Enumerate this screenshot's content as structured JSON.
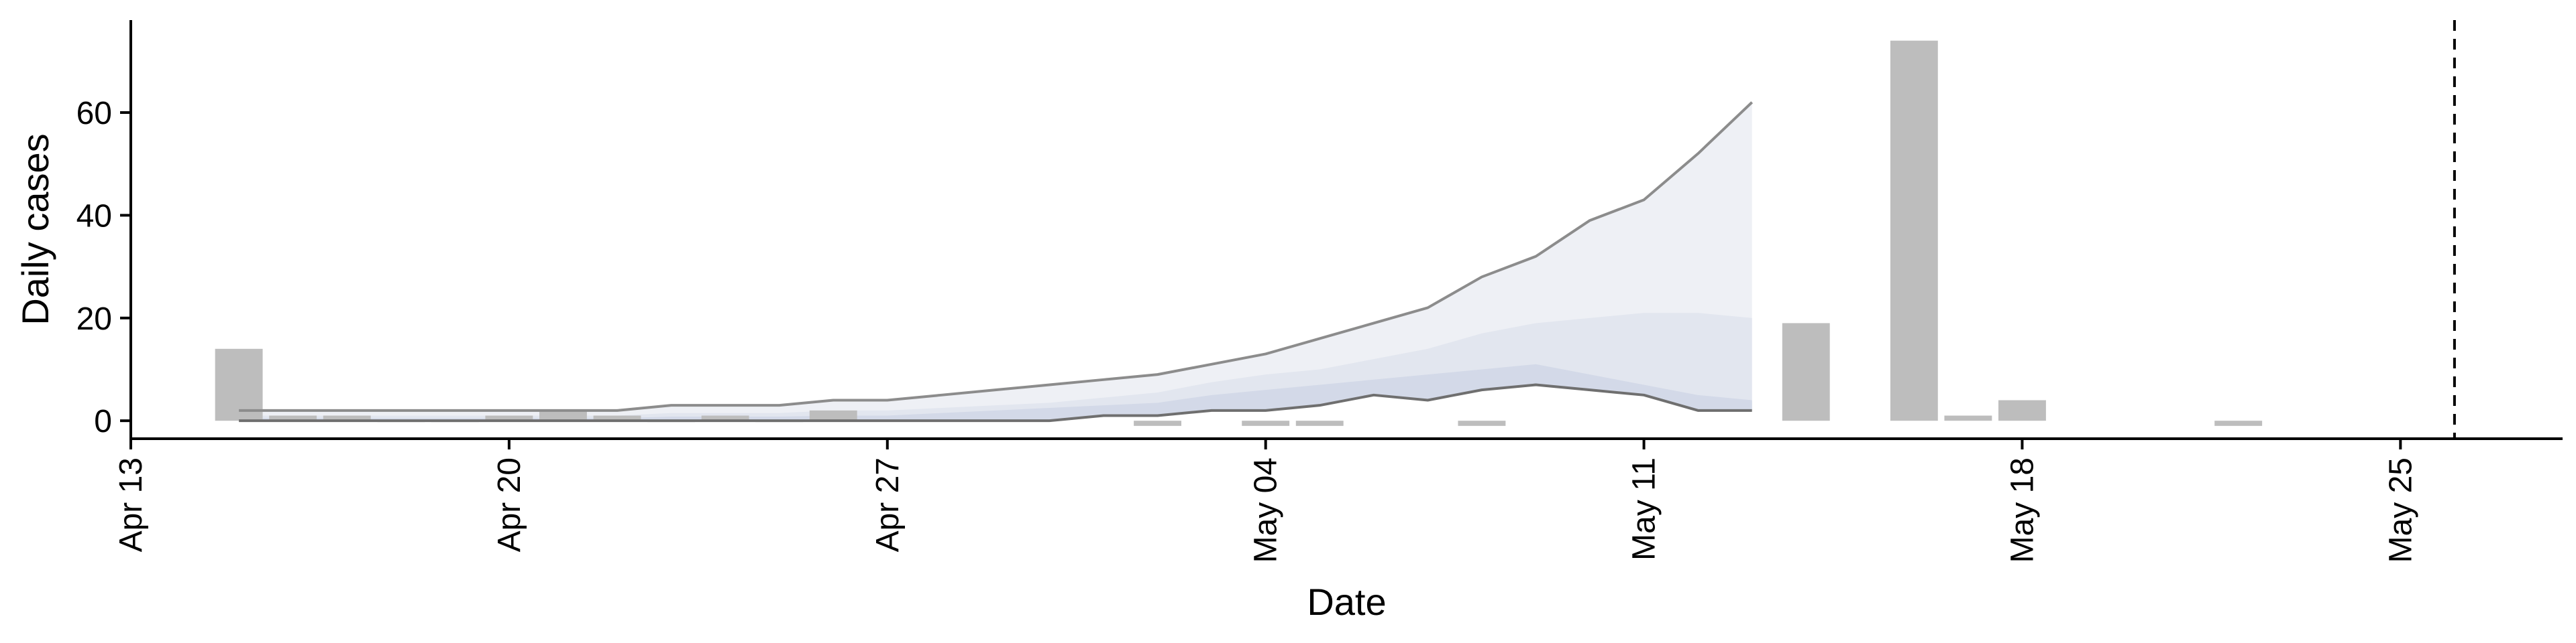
{
  "chart_data": {
    "type": "bar",
    "xlabel": "Date",
    "ylabel": "Daily cases",
    "x_tick_labels": [
      "Apr 13",
      "Apr 20",
      "Apr 27",
      "May 04",
      "May 11",
      "May 18",
      "May 25"
    ],
    "y_tick_labels": [
      "0",
      "20",
      "40",
      "60"
    ],
    "y_ticks": [
      0,
      20,
      40,
      60
    ],
    "ylim": [
      -3.5,
      78
    ],
    "xlim": [
      "2020-04-13",
      "2020-05-28"
    ],
    "x_ticks": [
      "2020-04-13",
      "2020-04-20",
      "2020-04-27",
      "2020-05-04",
      "2020-05-11",
      "2020-05-18",
      "2020-05-25"
    ],
    "cutoff_date": "2020-05-26",
    "colors": {
      "bars": "#bdbdbd",
      "outer_band": "#eef0f5",
      "middle_band": "#e2e6ef",
      "inner_band": "#d3d9e8",
      "upper_line": "#8c8c8c",
      "lower_line": "#6f6f6f",
      "axis": "#000000"
    },
    "observed_cases": [
      {
        "date": "2020-04-15",
        "value": 14
      },
      {
        "date": "2020-04-16",
        "value": 1
      },
      {
        "date": "2020-04-17",
        "value": 1
      },
      {
        "date": "2020-04-18",
        "value": 0
      },
      {
        "date": "2020-04-19",
        "value": 0
      },
      {
        "date": "2020-04-20",
        "value": 1
      },
      {
        "date": "2020-04-21",
        "value": 2
      },
      {
        "date": "2020-04-22",
        "value": 1
      },
      {
        "date": "2020-04-23",
        "value": 0
      },
      {
        "date": "2020-04-24",
        "value": 1
      },
      {
        "date": "2020-04-25",
        "value": 0
      },
      {
        "date": "2020-04-26",
        "value": 2
      },
      {
        "date": "2020-05-02",
        "value": -1
      },
      {
        "date": "2020-05-04",
        "value": -1
      },
      {
        "date": "2020-05-05",
        "value": -1
      },
      {
        "date": "2020-05-08",
        "value": -1
      },
      {
        "date": "2020-05-14",
        "value": 19
      },
      {
        "date": "2020-05-16",
        "value": 74
      },
      {
        "date": "2020-05-17",
        "value": 1
      },
      {
        "date": "2020-05-18",
        "value": 4
      },
      {
        "date": "2020-05-22",
        "value": -1
      }
    ],
    "forecast": {
      "dates": [
        "2020-04-15",
        "2020-04-16",
        "2020-04-17",
        "2020-04-18",
        "2020-04-19",
        "2020-04-20",
        "2020-04-21",
        "2020-04-22",
        "2020-04-23",
        "2020-04-24",
        "2020-04-25",
        "2020-04-26",
        "2020-04-27",
        "2020-04-28",
        "2020-04-29",
        "2020-04-30",
        "2020-05-01",
        "2020-05-02",
        "2020-05-03",
        "2020-05-04",
        "2020-05-05",
        "2020-05-06",
        "2020-05-07",
        "2020-05-08",
        "2020-05-09",
        "2020-05-10",
        "2020-05-11",
        "2020-05-12",
        "2020-05-13"
      ],
      "upper_90": [
        2,
        2,
        2,
        2,
        2,
        2,
        2,
        2,
        3,
        3,
        3,
        4,
        4,
        5,
        6,
        7,
        8,
        9,
        11,
        13,
        16,
        19,
        22,
        28,
        32,
        39,
        43,
        52,
        62
      ],
      "upper_50": [
        1,
        1,
        1,
        1,
        1,
        1,
        1,
        1,
        1.5,
        1.5,
        1.5,
        2,
        2,
        2.5,
        3,
        3.5,
        4.5,
        5.5,
        7.5,
        9,
        10,
        12,
        14,
        17,
        19,
        20,
        21,
        21,
        20
      ],
      "upper_20": [
        0.5,
        0.5,
        0.5,
        0.5,
        0.5,
        0.5,
        0.5,
        0.5,
        0.8,
        0.8,
        0.8,
        1,
        1,
        1.5,
        2,
        2.5,
        3,
        3.5,
        5,
        6,
        7,
        8,
        9,
        10,
        11,
        9,
        7,
        5,
        4
      ],
      "lower_90": [
        0,
        0,
        0,
        0,
        0,
        0,
        0,
        0,
        0,
        0,
        0,
        0,
        0,
        0,
        0,
        0,
        1,
        1,
        2,
        2,
        3,
        5,
        4,
        6,
        7,
        6,
        5,
        2,
        2
      ]
    }
  }
}
